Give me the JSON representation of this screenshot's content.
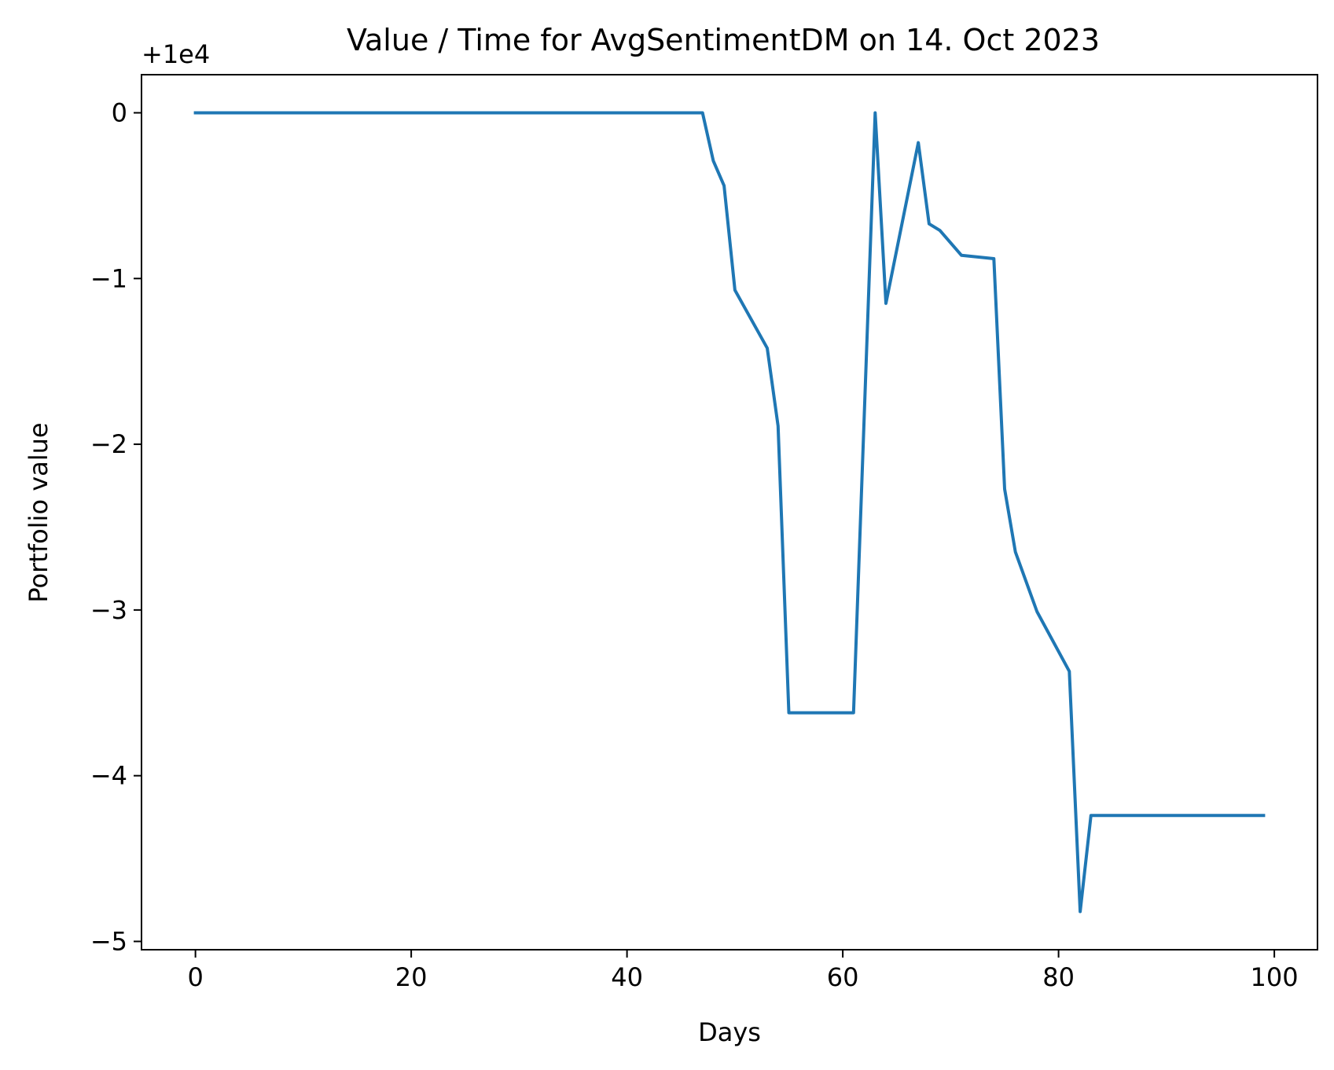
{
  "chart_data": {
    "type": "line",
    "title": "Value / Time for AvgSentimentDM on 14. Oct 2023",
    "xlabel": "Days",
    "ylabel": "Portfolio value",
    "offset_label": "+1e4",
    "xlim": [
      -5,
      104
    ],
    "ylim": [
      -5.05,
      0.23
    ],
    "x_ticks": [
      0,
      20,
      40,
      60,
      80,
      100
    ],
    "x_tick_labels": [
      "0",
      "20",
      "40",
      "60",
      "80",
      "100"
    ],
    "y_ticks": [
      0,
      -1,
      -2,
      -3,
      -4,
      -5
    ],
    "y_tick_labels": [
      "0",
      "−1",
      "−2",
      "−3",
      "−4",
      "−5"
    ],
    "grid": false,
    "legend": "none",
    "series": [
      {
        "color": "#1f77b4",
        "x": [
          0,
          47,
          48,
          49,
          50,
          53,
          54,
          55,
          61,
          63,
          64,
          67,
          68,
          69,
          71,
          74,
          75,
          76,
          78,
          81,
          82,
          83,
          99
        ],
        "y": [
          0,
          0,
          -0.29,
          -0.44,
          -1.07,
          -1.42,
          -1.89,
          -3.62,
          -3.62,
          0,
          -1.15,
          -0.18,
          -0.67,
          -0.71,
          -0.86,
          -0.88,
          -2.27,
          -2.65,
          -3.01,
          -3.37,
          -4.82,
          -4.24,
          -4.24
        ]
      }
    ]
  }
}
